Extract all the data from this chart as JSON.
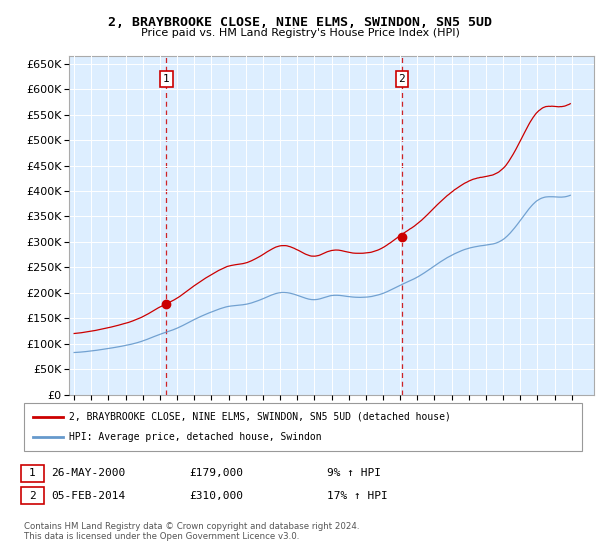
{
  "title": "2, BRAYBROOKE CLOSE, NINE ELMS, SWINDON, SN5 5UD",
  "subtitle": "Price paid vs. HM Land Registry's House Price Index (HPI)",
  "legend_line1": "2, BRAYBROOKE CLOSE, NINE ELMS, SWINDON, SN5 5UD (detached house)",
  "legend_line2": "HPI: Average price, detached house, Swindon",
  "sale1_label": "1",
  "sale1_date": "26-MAY-2000",
  "sale1_price": "£179,000",
  "sale1_hpi": "9% ↑ HPI",
  "sale2_label": "2",
  "sale2_date": "05-FEB-2014",
  "sale2_price": "£310,000",
  "sale2_hpi": "17% ↑ HPI",
  "footnote": "Contains HM Land Registry data © Crown copyright and database right 2024.\nThis data is licensed under the Open Government Licence v3.0.",
  "yticks": [
    0,
    50000,
    100000,
    150000,
    200000,
    250000,
    300000,
    350000,
    400000,
    450000,
    500000,
    550000,
    600000,
    650000
  ],
  "sale1_x": 2000.38,
  "sale1_y": 179000,
  "sale2_x": 2014.09,
  "sale2_y": 310000,
  "plot_bg": "#ddeeff",
  "line_red": "#cc0000",
  "line_blue": "#6699cc",
  "xlim_left": 1994.7,
  "xlim_right": 2025.3
}
